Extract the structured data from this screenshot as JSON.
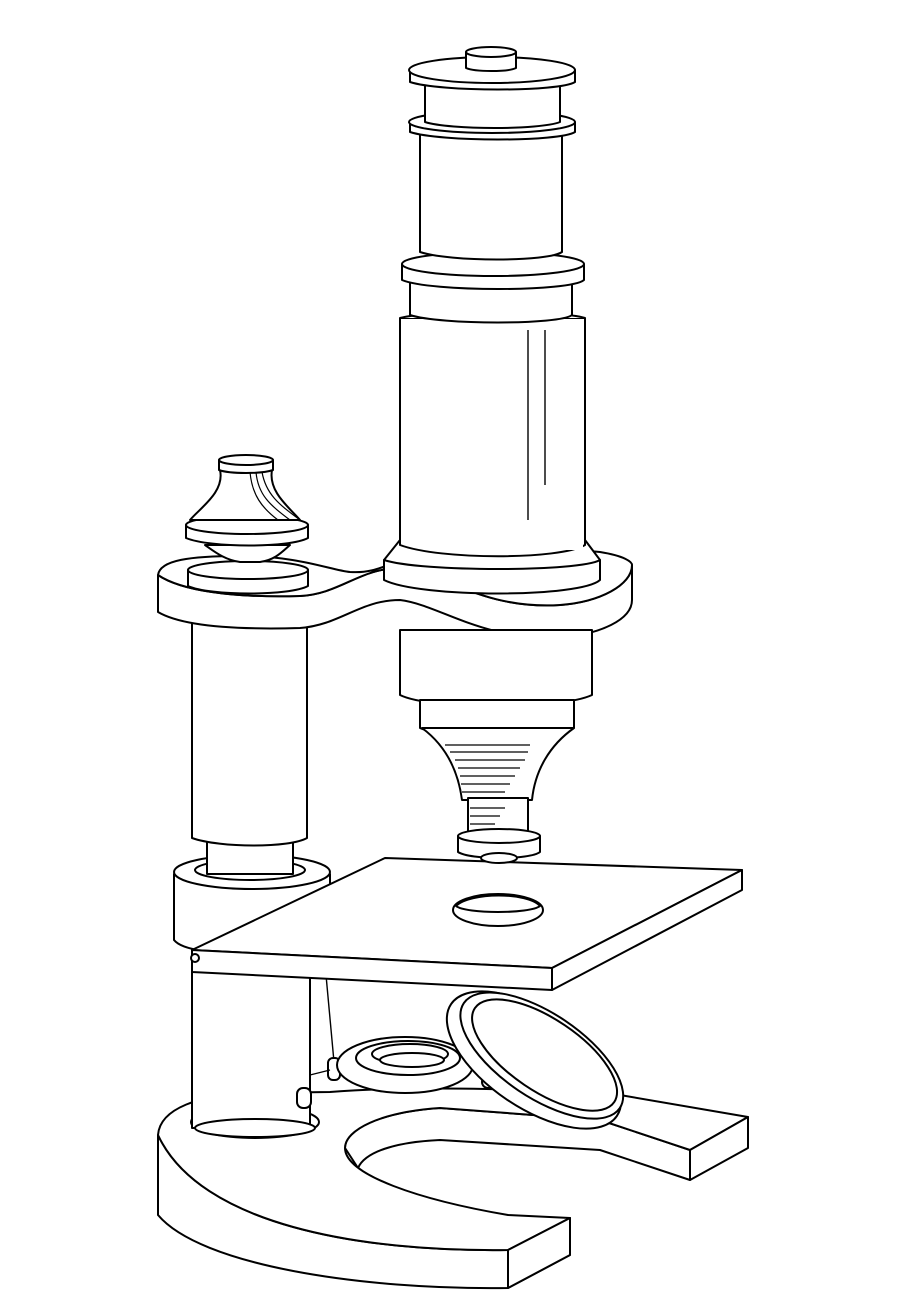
{
  "image": {
    "subject": "microscope-line-art",
    "colors": {
      "ink": "#000000",
      "paper": "#ffffff"
    },
    "parts": [
      "eyepiece-cap",
      "eyepiece-barrel",
      "focus-collar",
      "body-tube",
      "tube-base-collar",
      "arm",
      "coarse-focus-knob",
      "pillar",
      "objective-nosepiece",
      "objective-lens",
      "stage",
      "stage-aperture",
      "pillar-base-collar",
      "lower-pillar",
      "condenser-ring",
      "mirror",
      "horseshoe-foot"
    ]
  }
}
